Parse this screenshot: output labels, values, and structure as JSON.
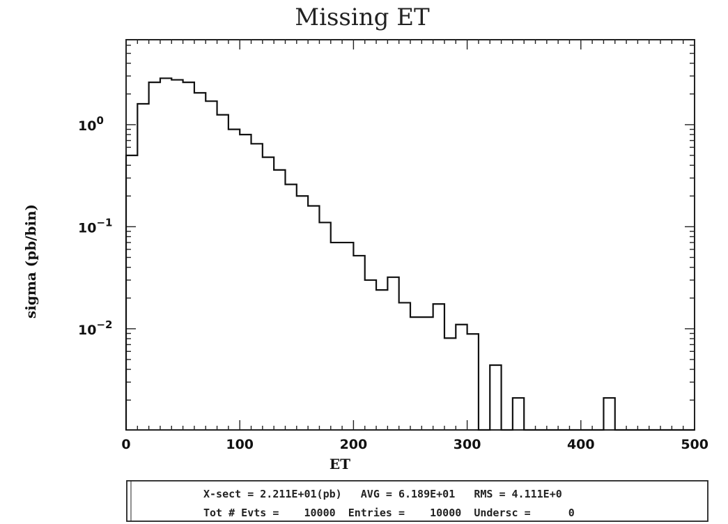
{
  "chart_data": {
    "type": "histogram",
    "title": "Missing ET",
    "xlabel": "ET",
    "ylabel": "sigma (pb/bin)",
    "x_scale": "linear",
    "y_scale": "log",
    "xlim": [
      0,
      500
    ],
    "ylim": [
      0.00102,
      6.8
    ],
    "x_ticks": [
      0,
      100,
      200,
      300,
      400,
      500
    ],
    "x_tick_labels": [
      "0",
      "100",
      "200",
      "300",
      "400",
      "500"
    ],
    "y_ticks": [
      1,
      0.1,
      0.01
    ],
    "y_tick_labels": [
      {
        "base": "10",
        "exp": "0"
      },
      {
        "base": "10",
        "exp": "−1"
      },
      {
        "base": "10",
        "exp": "−2"
      }
    ],
    "grid": false,
    "bin_width": 10,
    "bin_edges_start": 0,
    "values": [
      0.5,
      1.6,
      2.6,
      2.85,
      2.75,
      2.6,
      2.05,
      1.7,
      1.25,
      0.9,
      0.8,
      0.65,
      0.48,
      0.36,
      0.26,
      0.2,
      0.16,
      0.11,
      0.07,
      0.07,
      0.052,
      0.03,
      0.024,
      0.032,
      0.018,
      0.013,
      0.013,
      0.0175,
      0.0081,
      0.011,
      0.0089,
      0.00102,
      0.0044,
      0.00102,
      0.0021,
      0.00102,
      0.00102,
      0.00102,
      0.00102,
      0.00102,
      0.00102,
      0.00102,
      0.0021,
      0.00102,
      0.00102,
      0.00102,
      0.00102,
      0.00102,
      0.00102,
      0.00102
    ],
    "stats": {
      "line1": "X-sect = 2.211E+01(pb)   AVG = 6.189E+01   RMS = 4.111E+0",
      "line2": "Tot # Evts =    10000  Entries =    10000  Undersc =      0"
    }
  }
}
